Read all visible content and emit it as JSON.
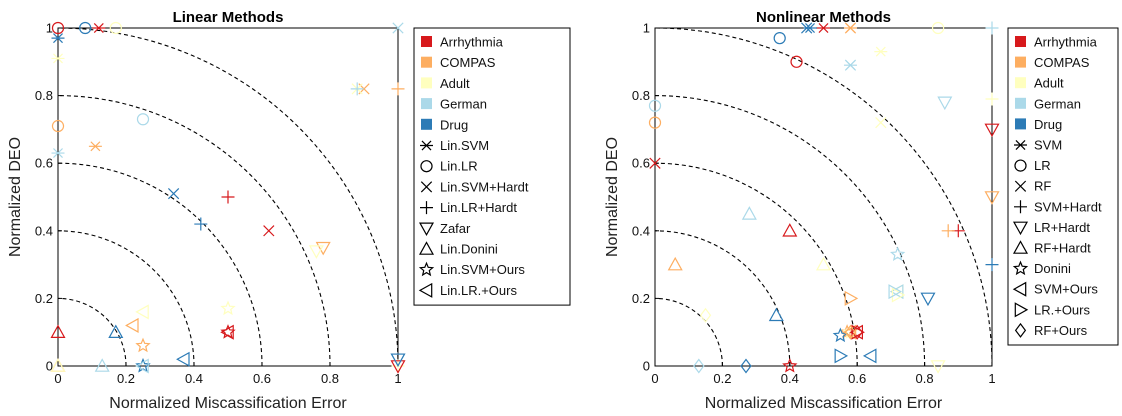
{
  "chart_data": [
    {
      "type": "scatter",
      "title": "Linear Methods",
      "xlabel": "Normalized Miscassification Error",
      "ylabel": "Normalized DEO",
      "xlim": [
        0,
        1
      ],
      "ylim": [
        0,
        1
      ],
      "xticks": [
        "0",
        "0.2",
        "0.4",
        "0.6",
        "0.8",
        "1"
      ],
      "yticks": [
        "0",
        "0.2",
        "0.4",
        "0.6",
        "0.8",
        "1"
      ],
      "reference_arcs_radius": [
        0.2,
        0.4,
        0.6,
        0.8,
        1.0
      ],
      "grid": false,
      "legend_position": "outside-right",
      "datasets": [
        {
          "name": "Arrhythmia",
          "color": "#d7191c"
        },
        {
          "name": "COMPAS",
          "color": "#fdae61"
        },
        {
          "name": "Adult",
          "color": "#ffffbf"
        },
        {
          "name": "German",
          "color": "#abd9e9"
        },
        {
          "name": "Drug",
          "color": "#2c7bb6"
        }
      ],
      "methods": [
        {
          "name": "Lin.SVM",
          "marker": "asterisk"
        },
        {
          "name": "Lin.LR",
          "marker": "circle"
        },
        {
          "name": "Lin.SVM+Hardt",
          "marker": "x"
        },
        {
          "name": "Lin.LR+Hardt",
          "marker": "plus"
        },
        {
          "name": "Zafar",
          "marker": "triangle-down"
        },
        {
          "name": "Lin.Donini",
          "marker": "triangle-up"
        },
        {
          "name": "Lin.SVM+Ours",
          "marker": "star"
        },
        {
          "name": "Lin.LR.+Ours",
          "marker": "triangle-left"
        }
      ],
      "points": [
        {
          "m": "asterisk",
          "d": "Arrhythmia",
          "x": 0.12,
          "y": 1.0
        },
        {
          "m": "asterisk",
          "d": "COMPAS",
          "x": 0.11,
          "y": 0.65
        },
        {
          "m": "asterisk",
          "d": "Adult",
          "x": 0.0,
          "y": 0.91
        },
        {
          "m": "asterisk",
          "d": "German",
          "x": 0.0,
          "y": 0.63
        },
        {
          "m": "asterisk",
          "d": "Drug",
          "x": 0.0,
          "y": 0.97
        },
        {
          "m": "circle",
          "d": "Arrhythmia",
          "x": 0.0,
          "y": 1.0
        },
        {
          "m": "circle",
          "d": "COMPAS",
          "x": 0.0,
          "y": 0.71
        },
        {
          "m": "circle",
          "d": "Adult",
          "x": 0.17,
          "y": 1.0
        },
        {
          "m": "circle",
          "d": "German",
          "x": 0.25,
          "y": 0.73
        },
        {
          "m": "circle",
          "d": "Drug",
          "x": 0.08,
          "y": 1.0
        },
        {
          "m": "x",
          "d": "Arrhythmia",
          "x": 0.62,
          "y": 0.4
        },
        {
          "m": "x",
          "d": "COMPAS",
          "x": 0.9,
          "y": 0.82
        },
        {
          "m": "x",
          "d": "Adult",
          "x": 0.88,
          "y": 0.82
        },
        {
          "m": "x",
          "d": "German",
          "x": 1.0,
          "y": 1.0
        },
        {
          "m": "x",
          "d": "Drug",
          "x": 0.34,
          "y": 0.51
        },
        {
          "m": "plus",
          "d": "Arrhythmia",
          "x": 0.5,
          "y": 0.5
        },
        {
          "m": "plus",
          "d": "COMPAS",
          "x": 1.0,
          "y": 0.82
        },
        {
          "m": "plus",
          "d": "Adult",
          "x": 1.0,
          "y": 0.0
        },
        {
          "m": "plus",
          "d": "German",
          "x": 0.88,
          "y": 0.82
        },
        {
          "m": "plus",
          "d": "Drug",
          "x": 0.42,
          "y": 0.42
        },
        {
          "m": "triangle-down",
          "d": "Arrhythmia",
          "x": 1.0,
          "y": 0.0
        },
        {
          "m": "triangle-down",
          "d": "COMPAS",
          "x": 0.78,
          "y": 0.35
        },
        {
          "m": "triangle-down",
          "d": "Adult",
          "x": 0.76,
          "y": 0.34
        },
        {
          "m": "triangle-down",
          "d": "German",
          "x": 1.0,
          "y": 0.02
        },
        {
          "m": "triangle-down",
          "d": "Drug",
          "x": 1.0,
          "y": 0.02
        },
        {
          "m": "triangle-up",
          "d": "Arrhythmia",
          "x": 0.0,
          "y": 0.1
        },
        {
          "m": "triangle-up",
          "d": "COMPAS",
          "x": 0.0,
          "y": 0.0
        },
        {
          "m": "triangle-up",
          "d": "Adult",
          "x": 0.0,
          "y": 0.0
        },
        {
          "m": "triangle-up",
          "d": "German",
          "x": 0.13,
          "y": 0.0
        },
        {
          "m": "triangle-up",
          "d": "Drug",
          "x": 0.17,
          "y": 0.1
        },
        {
          "m": "star",
          "d": "Arrhythmia",
          "x": 0.5,
          "y": 0.1
        },
        {
          "m": "star",
          "d": "COMPAS",
          "x": 0.25,
          "y": 0.06
        },
        {
          "m": "star",
          "d": "Adult",
          "x": 0.5,
          "y": 0.17
        },
        {
          "m": "star",
          "d": "German",
          "x": 0.25,
          "y": 0.0
        },
        {
          "m": "star",
          "d": "Drug",
          "x": 0.25,
          "y": 0.0
        },
        {
          "m": "triangle-left",
          "d": "Arrhythmia",
          "x": 0.5,
          "y": 0.1
        },
        {
          "m": "triangle-left",
          "d": "COMPAS",
          "x": 0.22,
          "y": 0.12
        },
        {
          "m": "triangle-left",
          "d": "Adult",
          "x": 0.25,
          "y": 0.16
        },
        {
          "m": "triangle-left",
          "d": "German",
          "x": 0.25,
          "y": 0.0
        },
        {
          "m": "triangle-left",
          "d": "Drug",
          "x": 0.37,
          "y": 0.02
        }
      ]
    },
    {
      "type": "scatter",
      "title": "Nonlinear Methods",
      "xlabel": "Normalized Miscassification Error",
      "ylabel": "Normalized DEO",
      "xlim": [
        0,
        1
      ],
      "ylim": [
        0,
        1
      ],
      "xticks": [
        "0",
        "0.2",
        "0.4",
        "0.6",
        "0.8",
        "1"
      ],
      "yticks": [
        "0",
        "0.2",
        "0.4",
        "0.6",
        "0.8",
        "1"
      ],
      "reference_arcs_radius": [
        0.2,
        0.4,
        0.6,
        0.8,
        1.0
      ],
      "grid": false,
      "legend_position": "outside-right",
      "datasets": [
        {
          "name": "Arrhythmia",
          "color": "#d7191c"
        },
        {
          "name": "COMPAS",
          "color": "#fdae61"
        },
        {
          "name": "Adult",
          "color": "#ffffbf"
        },
        {
          "name": "German",
          "color": "#abd9e9"
        },
        {
          "name": "Drug",
          "color": "#2c7bb6"
        }
      ],
      "methods": [
        {
          "name": "SVM",
          "marker": "asterisk"
        },
        {
          "name": "LR",
          "marker": "circle"
        },
        {
          "name": "RF",
          "marker": "x"
        },
        {
          "name": "SVM+Hardt",
          "marker": "plus"
        },
        {
          "name": "LR+Hardt",
          "marker": "triangle-down"
        },
        {
          "name": "RF+Hardt",
          "marker": "triangle-up"
        },
        {
          "name": "Donini",
          "marker": "star"
        },
        {
          "name": "SVM+Ours",
          "marker": "triangle-left"
        },
        {
          "name": "LR.+Ours",
          "marker": "triangle-right"
        },
        {
          "name": "RF+Ours",
          "marker": "diamond"
        }
      ],
      "points": [
        {
          "m": "asterisk",
          "d": "Arrhythmia",
          "x": 0.5,
          "y": 1.0
        },
        {
          "m": "asterisk",
          "d": "COMPAS",
          "x": 0.58,
          "y": 1.0
        },
        {
          "m": "asterisk",
          "d": "Adult",
          "x": 0.67,
          "y": 0.93
        },
        {
          "m": "asterisk",
          "d": "German",
          "x": 0.58,
          "y": 0.89
        },
        {
          "m": "asterisk",
          "d": "Drug",
          "x": 0.46,
          "y": 1.0
        },
        {
          "m": "circle",
          "d": "Arrhythmia",
          "x": 0.42,
          "y": 0.9
        },
        {
          "m": "circle",
          "d": "COMPAS",
          "x": 0.0,
          "y": 0.72
        },
        {
          "m": "circle",
          "d": "Adult",
          "x": 0.84,
          "y": 1.0
        },
        {
          "m": "circle",
          "d": "German",
          "x": 0.0,
          "y": 0.77
        },
        {
          "m": "circle",
          "d": "Drug",
          "x": 0.37,
          "y": 0.97
        },
        {
          "m": "x",
          "d": "Arrhythmia",
          "x": 0.0,
          "y": 0.6
        },
        {
          "m": "x",
          "d": "COMPAS",
          "x": 0.58,
          "y": 1.0
        },
        {
          "m": "x",
          "d": "Adult",
          "x": 0.67,
          "y": 0.72
        },
        {
          "m": "x",
          "d": "German",
          "x": 0.58,
          "y": 0.89
        },
        {
          "m": "x",
          "d": "Drug",
          "x": 0.45,
          "y": 1.0
        },
        {
          "m": "plus",
          "d": "Arrhythmia",
          "x": 0.9,
          "y": 0.4
        },
        {
          "m": "plus",
          "d": "COMPAS",
          "x": 0.87,
          "y": 0.4
        },
        {
          "m": "plus",
          "d": "Adult",
          "x": 1.0,
          "y": 0.79
        },
        {
          "m": "plus",
          "d": "German",
          "x": 1.0,
          "y": 1.0
        },
        {
          "m": "plus",
          "d": "Drug",
          "x": 1.0,
          "y": 0.3
        },
        {
          "m": "triangle-down",
          "d": "Arrhythmia",
          "x": 1.0,
          "y": 0.7
        },
        {
          "m": "triangle-down",
          "d": "COMPAS",
          "x": 1.0,
          "y": 0.5
        },
        {
          "m": "triangle-down",
          "d": "Adult",
          "x": 0.84,
          "y": 0.0
        },
        {
          "m": "triangle-down",
          "d": "German",
          "x": 0.86,
          "y": 0.78
        },
        {
          "m": "triangle-down",
          "d": "Drug",
          "x": 0.81,
          "y": 0.2
        },
        {
          "m": "triangle-up",
          "d": "Arrhythmia",
          "x": 0.4,
          "y": 0.4
        },
        {
          "m": "triangle-up",
          "d": "COMPAS",
          "x": 0.06,
          "y": 0.3
        },
        {
          "m": "triangle-up",
          "d": "Adult",
          "x": 0.5,
          "y": 0.3
        },
        {
          "m": "triangle-up",
          "d": "German",
          "x": 0.28,
          "y": 0.45
        },
        {
          "m": "triangle-up",
          "d": "Drug",
          "x": 0.36,
          "y": 0.15
        },
        {
          "m": "star",
          "d": "Arrhythmia",
          "x": 0.4,
          "y": 0.0
        },
        {
          "m": "star",
          "d": "COMPAS",
          "x": 0.57,
          "y": 0.1
        },
        {
          "m": "star",
          "d": "Adult",
          "x": 0.58,
          "y": 0.1
        },
        {
          "m": "star",
          "d": "German",
          "x": 0.72,
          "y": 0.33
        },
        {
          "m": "star",
          "d": "Drug",
          "x": 0.55,
          "y": 0.09
        },
        {
          "m": "triangle-left",
          "d": "Arrhythmia",
          "x": 0.6,
          "y": 0.1
        },
        {
          "m": "triangle-left",
          "d": "COMPAS",
          "x": 0.58,
          "y": 0.1
        },
        {
          "m": "triangle-left",
          "d": "Adult",
          "x": 0.72,
          "y": 0.22
        },
        {
          "m": "triangle-left",
          "d": "German",
          "x": 0.72,
          "y": 0.22
        },
        {
          "m": "triangle-left",
          "d": "Drug",
          "x": 0.64,
          "y": 0.03
        },
        {
          "m": "triangle-right",
          "d": "Arrhythmia",
          "x": 0.6,
          "y": 0.1
        },
        {
          "m": "triangle-right",
          "d": "COMPAS",
          "x": 0.58,
          "y": 0.2
        },
        {
          "m": "triangle-right",
          "d": "Adult",
          "x": 0.72,
          "y": 0.21
        },
        {
          "m": "triangle-right",
          "d": "German",
          "x": 0.71,
          "y": 0.22
        },
        {
          "m": "triangle-right",
          "d": "Drug",
          "x": 0.55,
          "y": 0.03
        },
        {
          "m": "diamond",
          "d": "Arrhythmia",
          "x": 0.6,
          "y": 0.1
        },
        {
          "m": "diamond",
          "d": "COMPAS",
          "x": 0.58,
          "y": 0.1
        },
        {
          "m": "diamond",
          "d": "Adult",
          "x": 0.15,
          "y": 0.15
        },
        {
          "m": "diamond",
          "d": "German",
          "x": 0.13,
          "y": 0.0
        },
        {
          "m": "diamond",
          "d": "Drug",
          "x": 0.27,
          "y": 0.0
        }
      ]
    }
  ]
}
